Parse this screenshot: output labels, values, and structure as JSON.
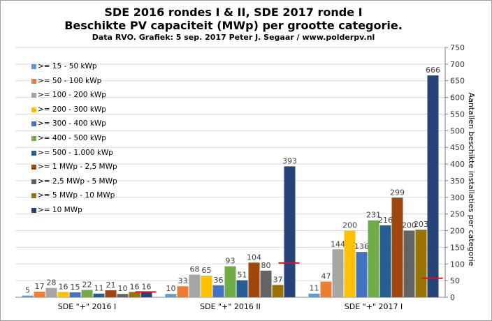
{
  "chart_data": {
    "type": "bar",
    "title": "SDE 2016 rondes I & II, SDE 2017 ronde I",
    "subtitle": "Beschikte  PV capaciteit  (MWp) per grootte categorie.",
    "source": "Data RVO. Grafiek: 5 sep. 2017 Peter J. Segaar / www.polderpv.nl",
    "ylabel_right": "Aantallen beschikte installaties per categorie",
    "ylim": [
      0,
      750
    ],
    "yticks": [
      "0",
      "50",
      "100",
      "150",
      "200",
      "250",
      "300",
      "350",
      "400",
      "450",
      "500",
      "550",
      "600",
      "650",
      "700",
      "750"
    ],
    "categories": [
      "SDE \"+\" 2016 I",
      "SDE \"+\" 2016 II",
      "SDE \"+\" 2017 I"
    ],
    "series": [
      {
        "name": ">= 15 - 50 kWp",
        "color": "#5b9bd5",
        "values": [
          5,
          10,
          11
        ]
      },
      {
        "name": ">= 50 - 100 kWp",
        "color": "#ed7d31",
        "values": [
          17,
          33,
          47
        ]
      },
      {
        "name": ">= 100 - 200 kWp",
        "color": "#a5a5a5",
        "values": [
          28,
          68,
          144
        ]
      },
      {
        "name": ">= 200 - 300 kWp",
        "color": "#ffc000",
        "values": [
          16,
          65,
          200
        ]
      },
      {
        "name": ">= 300 - 400 kWp",
        "color": "#4472c4",
        "values": [
          15,
          36,
          136
        ]
      },
      {
        "name": ">= 400 - 500 kWp",
        "color": "#70ad47",
        "values": [
          22,
          93,
          231
        ]
      },
      {
        "name": ">= 500 - 1.000 kWp",
        "color": "#255e91",
        "values": [
          11,
          51,
          216
        ]
      },
      {
        "name": ">= 1 MWp - 2,5 MWp",
        "color": "#9e480e",
        "values": [
          21,
          104,
          299
        ]
      },
      {
        "name": ">= 2,5 MWp - 5 MWp",
        "color": "#636363",
        "values": [
          10,
          80,
          200
        ]
      },
      {
        "name": ">= 5 MWp - 10 MWp",
        "color": "#997300",
        "values": [
          16,
          37,
          203
        ]
      },
      {
        "name": ">= 10 MWp",
        "color": "#264478",
        "values": [
          16,
          393,
          666
        ]
      }
    ],
    "installation_counts": [
      16,
      103,
      57
    ],
    "installation_marker_color": "#e0101a",
    "grid": true,
    "legend_position": "left"
  }
}
